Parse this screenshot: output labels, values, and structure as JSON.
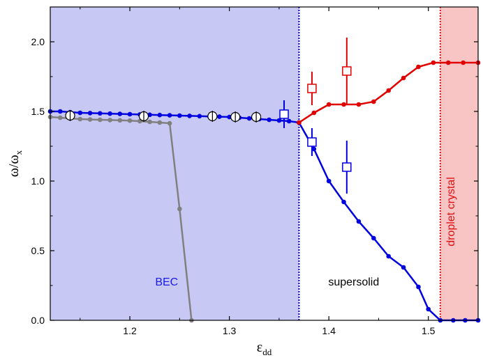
{
  "chart_data": {
    "type": "line",
    "xlabel": "ε",
    "xlabel_sub": "dd",
    "ylabel": "ω/ω",
    "ylabel_sub": "x",
    "xlim": [
      1.12,
      1.55
    ],
    "ylim": [
      0.0,
      2.25
    ],
    "xticks": [
      1.2,
      1.3,
      1.4,
      1.5
    ],
    "yticks": [
      0.0,
      0.5,
      1.0,
      1.5,
      2.0
    ],
    "xtick_labels": [
      "1.2",
      "1.3",
      "1.4",
      "1.5"
    ],
    "ytick_labels": [
      "0.0",
      "0.5",
      "1.0",
      "1.5",
      "2.0"
    ],
    "grid": false,
    "legend": "none",
    "regions": [
      {
        "label": "BEC",
        "x0": 1.12,
        "x1": 1.37,
        "fill": "#c8c8f4",
        "line": "#0000cc",
        "text": "#1a1ae6",
        "label_x": 1.237,
        "label_y": 0.25,
        "vertical": false
      },
      {
        "label": "supersolid",
        "x0": 1.37,
        "x1": 1.512,
        "fill": "none",
        "line": "none",
        "text": "#000000",
        "label_x": 1.425,
        "label_y": 0.25,
        "vertical": false
      },
      {
        "label": "droplet crystal",
        "x0": 1.512,
        "x1": 1.55,
        "fill": "#f8c4c4",
        "line": "#e01010",
        "text": "#e01010",
        "label_x": 1.526,
        "label_y": 0.78,
        "vertical": true
      }
    ],
    "series": [
      {
        "color": "#0000e0",
        "x": [
          1.12,
          1.13,
          1.14,
          1.15,
          1.16,
          1.17,
          1.18,
          1.19,
          1.2,
          1.21,
          1.22,
          1.23,
          1.24,
          1.25,
          1.26,
          1.27,
          1.28,
          1.29,
          1.3,
          1.31,
          1.32,
          1.33,
          1.34,
          1.35,
          1.36,
          1.37
        ],
        "y": [
          1.5,
          1.5,
          1.495,
          1.49,
          1.488,
          1.486,
          1.484,
          1.482,
          1.48,
          1.478,
          1.476,
          1.474,
          1.472,
          1.47,
          1.468,
          1.466,
          1.464,
          1.462,
          1.46,
          1.455,
          1.45,
          1.445,
          1.44,
          1.435,
          1.43,
          1.42
        ]
      },
      {
        "color": "#0000e0",
        "x": [
          1.37,
          1.385,
          1.4,
          1.415,
          1.43,
          1.445,
          1.46,
          1.475,
          1.49,
          1.5,
          1.512,
          1.525,
          1.537,
          1.55
        ],
        "y": [
          1.42,
          1.23,
          1.0,
          0.85,
          0.71,
          0.59,
          0.46,
          0.38,
          0.24,
          0.08,
          0.0,
          0.0,
          0.0,
          0.0
        ]
      },
      {
        "color": "#e00000",
        "x": [
          1.37,
          1.385,
          1.4,
          1.415,
          1.43,
          1.445,
          1.46,
          1.475,
          1.49,
          1.505,
          1.52,
          1.535,
          1.55
        ],
        "y": [
          1.42,
          1.49,
          1.55,
          1.55,
          1.55,
          1.57,
          1.65,
          1.74,
          1.82,
          1.85,
          1.85,
          1.85,
          1.85
        ]
      },
      {
        "color": "#808080",
        "x": [
          1.12,
          1.13,
          1.14,
          1.15,
          1.16,
          1.17,
          1.18,
          1.19,
          1.2,
          1.21,
          1.22,
          1.23,
          1.24,
          1.25,
          1.262
        ],
        "y": [
          1.46,
          1.455,
          1.45,
          1.445,
          1.442,
          1.44,
          1.438,
          1.436,
          1.434,
          1.43,
          1.425,
          1.42,
          1.415,
          0.8,
          0.0
        ]
      }
    ],
    "markers": [
      {
        "type": "circle",
        "x": [
          1.14,
          1.214,
          1.283,
          1.306,
          1.327
        ],
        "y": [
          1.47,
          1.465,
          1.465,
          1.46,
          1.46
        ],
        "yerr": [
          0.04,
          0.04,
          0.04,
          0.04,
          0.04
        ]
      },
      {
        "type": "square",
        "color": "#0000e0",
        "x": [
          1.355,
          1.383,
          1.418
        ],
        "y": [
          1.48,
          1.28,
          1.1
        ],
        "yerr": [
          0.1,
          0.1,
          0.19
        ]
      },
      {
        "type": "square",
        "color": "#e00000",
        "x": [
          1.383,
          1.418
        ],
        "y": [
          1.665,
          1.79
        ],
        "yerr": [
          0.12,
          0.24
        ]
      }
    ]
  }
}
